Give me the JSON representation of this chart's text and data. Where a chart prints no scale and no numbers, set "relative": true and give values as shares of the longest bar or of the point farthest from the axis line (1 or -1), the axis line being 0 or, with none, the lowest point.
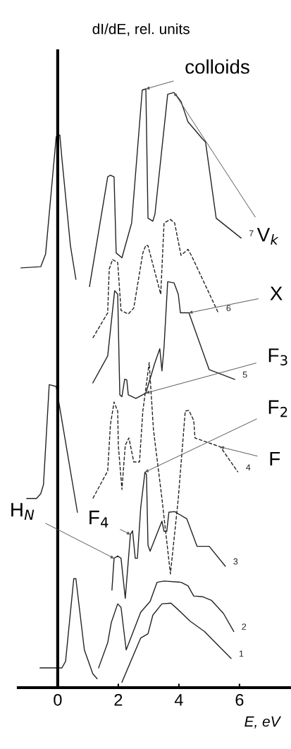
{
  "chart_data": {
    "type": "line",
    "relative": true,
    "xlabel": "E, eV",
    "ylabel": "dI/dE, rel. units",
    "xlim": [
      -1.3,
      7.7
    ],
    "ref_lines": [
      {
        "axis": "x",
        "value": 0,
        "color": "#000000"
      }
    ],
    "xticks": [
      0,
      2,
      4,
      6
    ],
    "grid": false,
    "legend": false,
    "marker": "none",
    "series": [
      {
        "name": "1",
        "color": "#222222",
        "line_style": "solid",
        "x": [
          -0.58,
          0.14,
          0.26,
          0.53,
          0.6,
          0.88,
          1.16,
          1.3,
          1.7,
          2.12,
          2.74,
          2.98,
          3.14,
          3.44,
          3.74,
          3.98,
          4.37,
          4.84,
          5.72
        ],
        "values": [
          0.033,
          0.033,
          0.044,
          0.182,
          0.182,
          0.063,
          0.023,
          0.015,
          null,
          0.009,
          0.083,
          0.09,
          0.121,
          0.14,
          0.141,
          0.13,
          0.111,
          0.094,
          0.049
        ]
      },
      {
        "name": "2",
        "color": "#222222",
        "line_style": "solid",
        "x": [
          1.35,
          1.65,
          1.77,
          1.98,
          2.09,
          2.26,
          2.74,
          3.05,
          3.28,
          3.51,
          4.07,
          4.3,
          4.49,
          4.77,
          5.07,
          5.47,
          5.81
        ],
        "values": [
          0.033,
          0.075,
          0.109,
          0.14,
          0.134,
          0.063,
          0.126,
          0.144,
          0.176,
          0.178,
          0.176,
          0.17,
          0.153,
          0.152,
          0.146,
          0.124,
          0.094
        ]
      },
      {
        "name": "3",
        "color": "#222222",
        "line_style": "solid",
        "x": [
          -1.02,
          -0.7,
          -0.56,
          -0.47,
          -0.28,
          -0.05,
          0.19,
          0.65,
          1.0,
          1.79,
          1.86,
          1.98,
          2.09,
          2.23,
          2.4,
          2.47,
          2.56,
          2.63,
          2.74,
          2.88,
          2.93,
          2.98,
          3.05,
          3.44,
          3.51,
          3.6,
          3.67,
          3.86,
          4.26,
          4.6,
          5.0,
          5.53
        ],
        "values": [
          0.316,
          0.316,
          0.324,
          0.339,
          0.506,
          0.503,
          0.431,
          0.293,
          null,
          0.163,
          0.216,
          0.22,
          0.216,
          0.149,
          0.256,
          0.262,
          0.216,
          0.216,
          0.301,
          0.36,
          0.356,
          0.238,
          0.228,
          0.278,
          0.261,
          0.261,
          0.293,
          0.294,
          0.282,
          0.236,
          0.236,
          0.203
        ]
      },
      {
        "name": "4",
        "color": "#222222",
        "line_style": "dashed",
        "x": [
          1.16,
          1.65,
          1.74,
          1.86,
          1.98,
          2.0,
          2.12,
          2.23,
          2.35,
          2.51,
          2.7,
          2.81,
          3.02,
          3.16,
          3.44,
          3.72,
          3.98,
          4.21,
          4.33,
          4.49,
          4.53,
          5.37,
          5.95
        ],
        "values": [
          0.316,
          0.362,
          0.439,
          0.477,
          0.462,
          0.405,
          0.331,
          0.405,
          0.417,
          0.377,
          0.377,
          0.462,
          0.543,
          0.431,
          0.316,
          0.19,
          0.316,
          0.462,
          0.463,
          0.446,
          0.417,
          0.402,
          0.36
        ]
      },
      {
        "name": "5",
        "color": "#222222",
        "line_style": "solid",
        "x": [
          1.16,
          1.65,
          1.88,
          1.98,
          2.05,
          2.12,
          2.21,
          2.28,
          2.33,
          2.58,
          2.91,
          3.21,
          3.37,
          3.44,
          3.51,
          3.63,
          3.84,
          3.98,
          4.05,
          4.33,
          5.0,
          5.84
        ],
        "values": [
          0.509,
          0.554,
          0.663,
          0.657,
          0.489,
          0.486,
          0.515,
          0.514,
          0.489,
          0.483,
          0.492,
          0.543,
          0.566,
          0.529,
          0.569,
          0.678,
          0.676,
          0.657,
          0.626,
          0.626,
          0.531,
          0.515
        ]
      },
      {
        "name": "6",
        "color": "#222222",
        "line_style": "dashed",
        "x": [
          1.16,
          1.65,
          1.7,
          1.81,
          1.98,
          2.09,
          2.33,
          2.51,
          2.81,
          2.91,
          2.98,
          3.4,
          3.51,
          3.72,
          3.86,
          4.07,
          4.3,
          4.42,
          5.3
        ],
        "values": [
          0.584,
          0.626,
          0.699,
          0.715,
          0.71,
          0.63,
          0.624,
          0.634,
          0.726,
          0.739,
          0.738,
          0.657,
          0.776,
          0.782,
          0.776,
          0.722,
          0.732,
          0.721,
          0.626
        ]
      },
      {
        "name": "7",
        "color": "#222222",
        "line_style": "solid",
        "x": [
          -1.21,
          -0.56,
          -0.4,
          -0.05,
          0.07,
          0.14,
          0.42,
          0.6,
          0.9,
          1.05,
          1.65,
          1.74,
          1.86,
          1.93,
          2.12,
          2.44,
          2.79,
          2.91,
          2.98,
          3.14,
          3.21,
          3.63,
          3.84,
          4.07,
          4.3,
          4.77,
          4.88,
          5.23,
          6.05
        ],
        "values": [
          0.701,
          0.703,
          0.724,
          0.92,
          0.923,
          0.883,
          0.738,
          0.682,
          null,
          0.67,
          0.853,
          0.856,
          0.853,
          0.726,
          0.718,
          0.776,
          0.998,
          1.0,
          0.784,
          0.779,
          0.791,
          0.991,
          0.994,
          0.979,
          0.945,
          0.917,
          0.911,
          0.784,
          0.751
        ]
      }
    ],
    "annotations": [
      {
        "text": "colloids",
        "x": 2.91,
        "y": 1.0
      },
      {
        "text": "V$_{k}$",
        "x": 3.84,
        "y": 0.994
      },
      {
        "text": "X",
        "x": 4.33,
        "y": 0.626
      },
      {
        "text": "F$_{3}$",
        "x": 2.91,
        "y": 0.492
      },
      {
        "text": "F$_{2}$",
        "x": 2.88,
        "y": 0.36
      },
      {
        "text": "F",
        "x": 5.37,
        "y": 0.402
      },
      {
        "text": "H$_{N}$",
        "x": 1.86,
        "y": 0.216
      },
      {
        "text": "F$_{4}$",
        "x": 2.4,
        "y": 0.256
      }
    ]
  }
}
